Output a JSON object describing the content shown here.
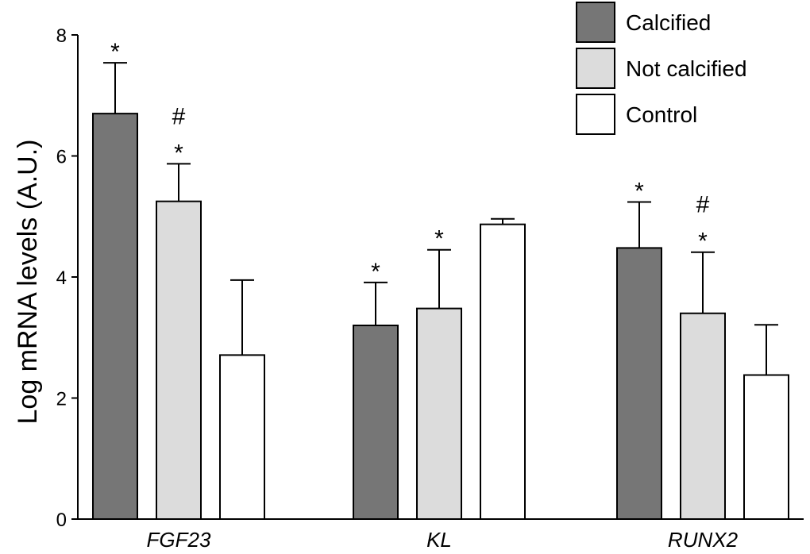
{
  "chart_data": {
    "type": "bar",
    "title": "",
    "xlabel": "",
    "ylabel": "Log mRNA levels (A.U.)",
    "ylim": [
      0,
      8
    ],
    "yticks": [
      0,
      2,
      4,
      6,
      8
    ],
    "categories": [
      "FGF23",
      "KL",
      "RUNX2"
    ],
    "grid": false,
    "legend_position": "top-right",
    "series": [
      {
        "name": "Calcified",
        "color": "#767676",
        "values": [
          6.7,
          3.2,
          4.48
        ],
        "errors": [
          0.84,
          0.71,
          0.76
        ],
        "annotations": [
          [
            "*"
          ],
          [
            "*"
          ],
          [
            "*"
          ]
        ]
      },
      {
        "name": "Not calcified",
        "color": "#dcdcdc",
        "values": [
          5.25,
          3.48,
          3.4
        ],
        "errors": [
          0.62,
          0.97,
          1.01
        ],
        "annotations": [
          [
            "#",
            "*"
          ],
          [
            "*"
          ],
          [
            "#",
            "*"
          ]
        ]
      },
      {
        "name": "Control",
        "color": "#ffffff",
        "values": [
          2.71,
          4.87,
          2.38
        ],
        "errors": [
          1.24,
          0.09,
          0.83
        ],
        "annotations": [
          [],
          [],
          []
        ]
      }
    ]
  }
}
